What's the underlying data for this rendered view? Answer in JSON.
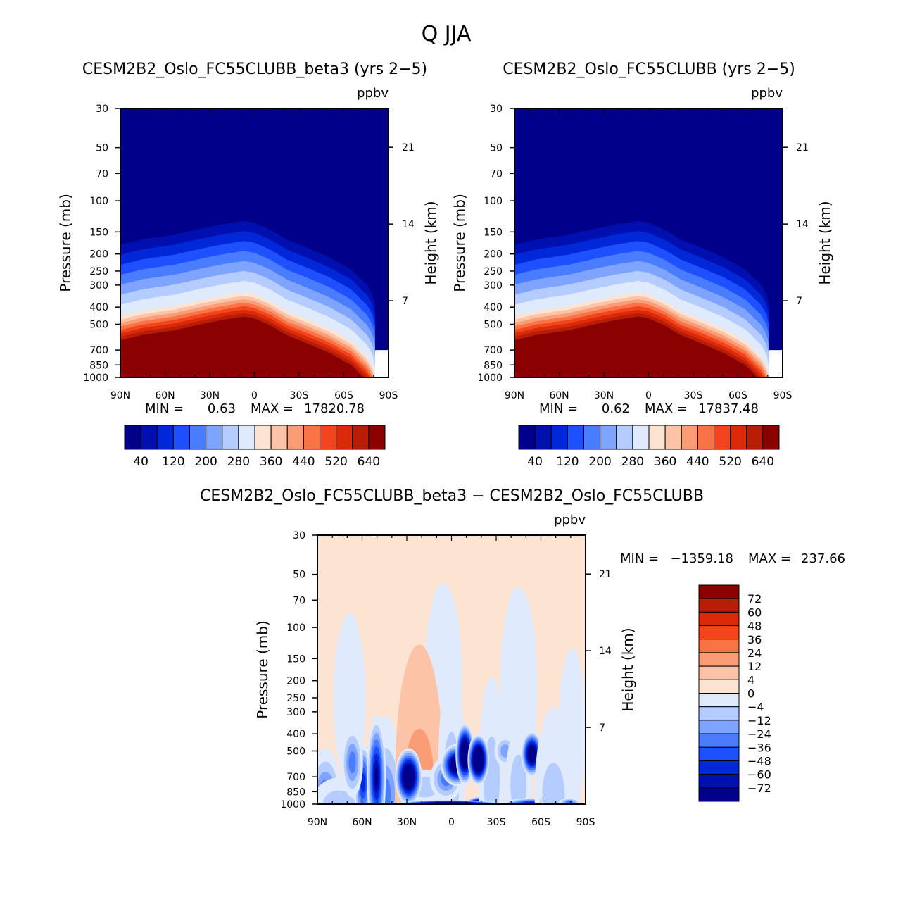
{
  "figure": {
    "title": "Q JJA"
  },
  "chart_data": [
    {
      "type": "heatmap",
      "title": "CESM2B2_Oslo_FC55CLUBB_beta3 (yrs 2-5)",
      "units": "ppbv",
      "xlabel": "",
      "ylabel": "Pressure (mb)",
      "y2label": "Height (km)",
      "x_ticks": [
        "90N",
        "60N",
        "30N",
        "0",
        "30S",
        "60S",
        "90S"
      ],
      "y_ticks": [
        30,
        50,
        70,
        100,
        150,
        200,
        250,
        300,
        400,
        500,
        700,
        850,
        1000
      ],
      "y2_ticks": [
        21,
        14,
        7
      ],
      "ylim": [
        30,
        1000
      ],
      "stats": {
        "min_label": "MIN =",
        "min": "0.63",
        "max_label": "MAX =",
        "max": "17820.78"
      },
      "colorbar_labels": [
        "40",
        "120",
        "200",
        "280",
        "360",
        "440",
        "520",
        "640"
      ],
      "colorbar_levels": [
        0,
        40,
        80,
        120,
        160,
        200,
        240,
        280,
        320,
        360,
        400,
        440,
        480,
        520,
        560,
        640
      ],
      "colors": [
        "#00008b",
        "#0010b0",
        "#0028d8",
        "#1f50ff",
        "#4a7cff",
        "#7ea4ff",
        "#b4ccff",
        "#dfeafc",
        "#fde4d2",
        "#fcc3a6",
        "#fa9c75",
        "#f97346",
        "#f4441e",
        "#da2a0a",
        "#b81d07",
        "#8b0000"
      ]
    },
    {
      "type": "heatmap",
      "title": "CESM2B2_Oslo_FC55CLUBB (yrs 2-5)",
      "units": "ppbv",
      "xlabel": "",
      "ylabel": "Pressure (mb)",
      "y2label": "Height (km)",
      "x_ticks": [
        "90N",
        "60N",
        "30N",
        "0",
        "30S",
        "60S",
        "90S"
      ],
      "y_ticks": [
        30,
        50,
        70,
        100,
        150,
        200,
        250,
        300,
        400,
        500,
        700,
        850,
        1000
      ],
      "y2_ticks": [
        21,
        14,
        7
      ],
      "ylim": [
        30,
        1000
      ],
      "stats": {
        "min_label": "MIN =",
        "min": "0.62",
        "max_label": "MAX =",
        "max": "17837.48"
      },
      "colorbar_labels": [
        "40",
        "120",
        "200",
        "280",
        "360",
        "440",
        "520",
        "640"
      ],
      "colorbar_levels": [
        0,
        40,
        80,
        120,
        160,
        200,
        240,
        280,
        320,
        360,
        400,
        440,
        480,
        520,
        560,
        640
      ],
      "colors": [
        "#00008b",
        "#0010b0",
        "#0028d8",
        "#1f50ff",
        "#4a7cff",
        "#7ea4ff",
        "#b4ccff",
        "#dfeafc",
        "#fde4d2",
        "#fcc3a6",
        "#fa9c75",
        "#f97346",
        "#f4441e",
        "#da2a0a",
        "#b81d07",
        "#8b0000"
      ]
    },
    {
      "type": "heatmap",
      "title": "CESM2B2_Oslo_FC55CLUBB_beta3 - CESM2B2_Oslo_FC55CLUBB",
      "units": "ppbv",
      "xlabel": "",
      "ylabel": "Pressure (mb)",
      "y2label": "Height (km)",
      "x_ticks": [
        "90N",
        "60N",
        "30N",
        "0",
        "30S",
        "60S",
        "90S"
      ],
      "y_ticks": [
        30,
        50,
        70,
        100,
        150,
        200,
        250,
        300,
        400,
        500,
        700,
        850,
        1000
      ],
      "y2_ticks": [
        21,
        14,
        7
      ],
      "ylim": [
        30,
        1000
      ],
      "stats": {
        "min_label": "MIN =",
        "min": "-1359.18",
        "max_label": "MAX =",
        "max": "237.66"
      },
      "colorbar_labels": [
        "72",
        "60",
        "48",
        "36",
        "24",
        "12",
        "4",
        "0",
        "-4",
        "-12",
        "-24",
        "-36",
        "-48",
        "-60",
        "-72"
      ],
      "colors": [
        "#8b0000",
        "#b81d07",
        "#da2a0a",
        "#f4441e",
        "#f97346",
        "#fa9c75",
        "#fcc3a6",
        "#fde4d2",
        "#dfeafc",
        "#b4ccff",
        "#7ea4ff",
        "#4a7cff",
        "#1f50ff",
        "#0028d8",
        "#0010b0",
        "#00008b"
      ]
    }
  ]
}
